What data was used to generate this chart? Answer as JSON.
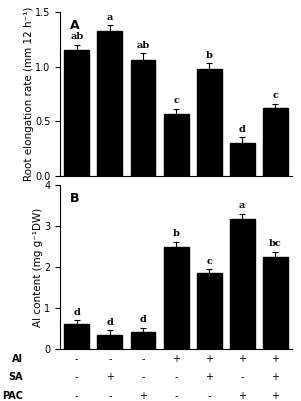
{
  "panel_A": {
    "values": [
      1.15,
      1.33,
      1.06,
      0.56,
      0.98,
      0.3,
      0.62
    ],
    "errors": [
      0.05,
      0.05,
      0.06,
      0.05,
      0.05,
      0.05,
      0.04
    ],
    "letters": [
      "ab",
      "a",
      "ab",
      "c",
      "b",
      "d",
      "c"
    ],
    "ylabel": "Root elongation rate (mm 12 h⁻¹)",
    "ylim": [
      0,
      1.5
    ],
    "yticks": [
      0,
      0.5,
      1.0,
      1.5
    ],
    "label": "A"
  },
  "panel_B": {
    "values": [
      0.6,
      0.35,
      0.42,
      2.5,
      1.85,
      3.18,
      2.25
    ],
    "errors": [
      0.1,
      0.1,
      0.1,
      0.12,
      0.1,
      0.12,
      0.12
    ],
    "letters": [
      "d",
      "d",
      "d",
      "b",
      "c",
      "a",
      "bc"
    ],
    "ylabel": "Al content (mg g⁻¹DW)",
    "ylim": [
      0,
      4.0
    ],
    "yticks": [
      0,
      1.0,
      2.0,
      3.0,
      4.0
    ],
    "label": "B"
  },
  "xticklabels_rows": [
    [
      "Al",
      "-",
      "-",
      "-",
      "+",
      "+",
      "+",
      "+"
    ],
    [
      "SA",
      "-",
      "+",
      "-",
      "-",
      "+",
      "-",
      "+"
    ],
    [
      "PAC",
      "-",
      "-",
      "+",
      "-",
      "-",
      "+",
      "+"
    ]
  ],
  "bar_color": "#000000",
  "bar_width": 0.75,
  "n_bars": 7,
  "letter_fontsize": 7,
  "label_fontsize": 8,
  "ylabel_fontsize": 7.5,
  "tick_fontsize": 7,
  "xtick_fontsize": 7
}
